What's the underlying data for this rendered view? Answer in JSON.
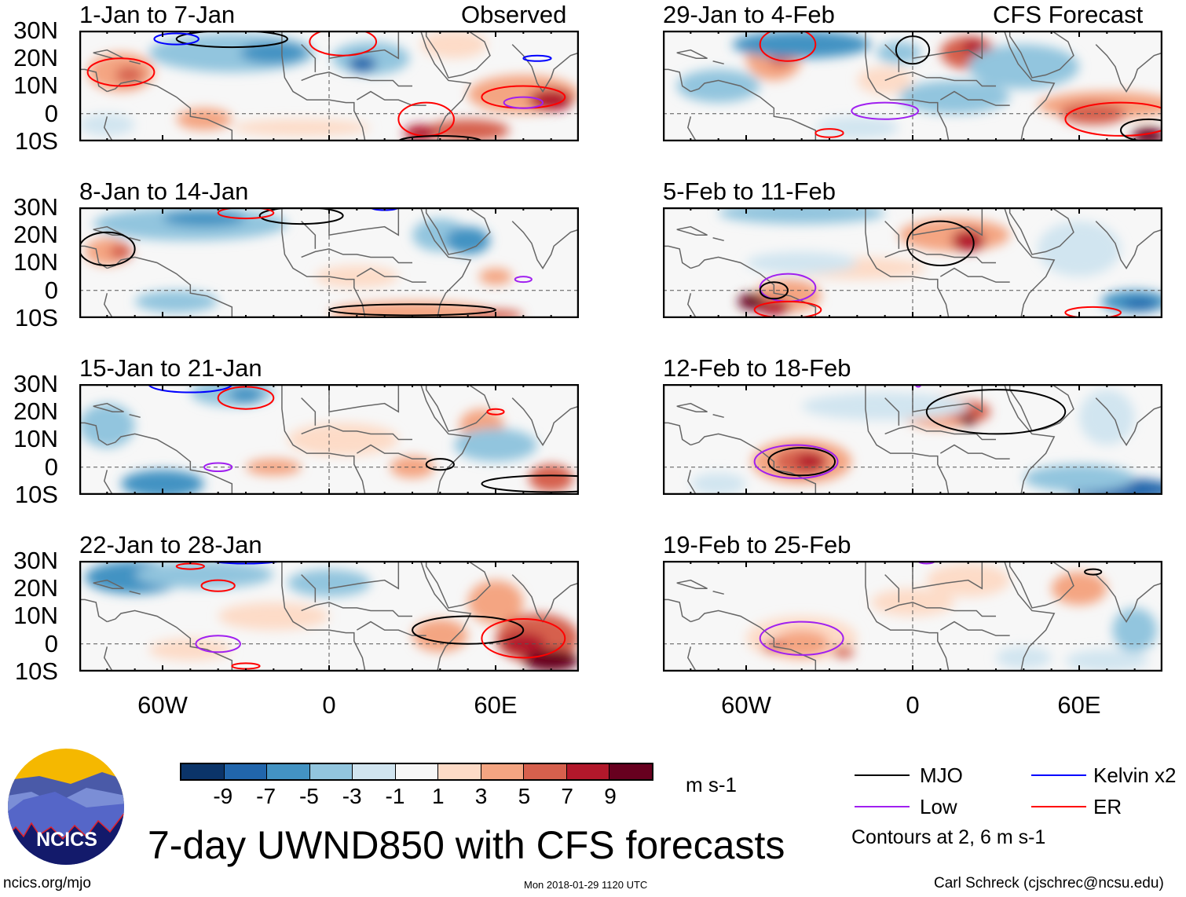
{
  "headers": {
    "observed": "Observed",
    "forecast": "CFS Forecast"
  },
  "panels": [
    {
      "title": "1-Jan to 7-Jan"
    },
    {
      "title": "8-Jan to 14-Jan"
    },
    {
      "title": "15-Jan to 21-Jan"
    },
    {
      "title": "22-Jan to 28-Jan"
    },
    {
      "title": "29-Jan to 4-Feb"
    },
    {
      "title": "5-Feb to 11-Feb"
    },
    {
      "title": "12-Feb to 18-Feb"
    },
    {
      "title": "19-Feb to 25-Feb"
    }
  ],
  "lat_labels": [
    "30N",
    "20N",
    "10N",
    "0",
    "10S"
  ],
  "lon_labels": [
    "60W",
    "0",
    "60E"
  ],
  "colorbar": {
    "colors": [
      "#0b3469",
      "#2166ac",
      "#4393c3",
      "#92c5de",
      "#d1e5f0",
      "#f7f7f7",
      "#fddbc7",
      "#f4a582",
      "#d6604d",
      "#b2182b",
      "#67001f"
    ],
    "labels": [
      "-9",
      "-7",
      "-5",
      "-3",
      "-1",
      "1",
      "3",
      "5",
      "7",
      "9"
    ],
    "units": "m s-1"
  },
  "legend": {
    "items": [
      {
        "label": "MJO",
        "color": "#000000"
      },
      {
        "label": "Kelvin x2",
        "color": "#0000ff"
      },
      {
        "label": "Low",
        "color": "#a020f0"
      },
      {
        "label": "ER",
        "color": "#ff0000"
      }
    ],
    "note": "Contours at 2, 6 m s-1"
  },
  "title": "7-day UWND850 with CFS forecasts",
  "logo_text": "NCICS",
  "footer": {
    "left": "ncics.org/mjo",
    "center": "Mon 2018-01-29 1120 UTC",
    "right": "Carl Schreck (cjschrec@ncsu.edu)"
  }
}
